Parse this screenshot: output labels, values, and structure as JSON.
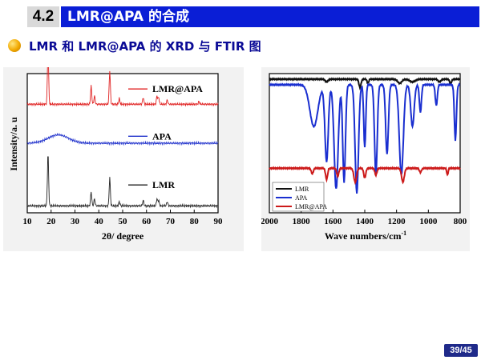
{
  "header": {
    "section_number": "4.2",
    "title": "LMR@APA 的合成"
  },
  "subtitle": "LMR 和 LMR@APA 的 XRD 与  FTIR 图",
  "page_indicator": "39/45",
  "chart_data": [
    {
      "type": "line",
      "panel": "xrd",
      "xlabel": "2θ/ degree",
      "ylabel": "Intensity/a. u",
      "xlim": [
        10,
        90
      ],
      "xticks": [
        "10",
        "20",
        "30",
        "40",
        "50",
        "60",
        "70",
        "80",
        "90"
      ],
      "legend_placement": "right, beside each curve",
      "series": [
        {
          "name": "LMR@APA",
          "color": "#e02020",
          "baseline_level": 0.78,
          "peaks": [
            [
              18.7,
              0.4
            ],
            [
              36.8,
              0.13
            ],
            [
              38.2,
              0.06
            ],
            [
              44.6,
              0.24
            ],
            [
              48.6,
              0.04
            ],
            [
              58.6,
              0.05
            ],
            [
              64.4,
              0.06
            ],
            [
              65.1,
              0.05
            ],
            [
              68.7,
              0.03
            ],
            [
              82.0,
              0.02
            ]
          ]
        },
        {
          "name": "APA",
          "color": "#2233cc",
          "baseline_level": 0.5,
          "broad_hump": {
            "center": 23,
            "height": 0.06,
            "width": 6
          }
        },
        {
          "name": "LMR",
          "color": "#222222",
          "baseline_level": 0.05,
          "peaks": [
            [
              18.7,
              0.38
            ],
            [
              36.8,
              0.1
            ],
            [
              38.2,
              0.05
            ],
            [
              44.6,
              0.2
            ],
            [
              48.6,
              0.03
            ],
            [
              58.6,
              0.04
            ],
            [
              64.4,
              0.05
            ],
            [
              65.1,
              0.04
            ],
            [
              68.7,
              0.03
            ]
          ]
        }
      ]
    },
    {
      "type": "line",
      "panel": "ftir",
      "xlabel": "Wave numbers/cm",
      "xlabel_sup": "-1",
      "xlim": [
        2000,
        800
      ],
      "xticks": [
        "2000",
        "1800",
        "1600",
        "1400",
        "1200",
        "1000",
        "800"
      ],
      "legend_placement": "bottom-left",
      "series": [
        {
          "name": "LMR",
          "color": "#111111",
          "baseline_level": 0.96,
          "bands": [
            [
              1640,
              0.02,
              20
            ],
            [
              1430,
              0.06,
              15
            ],
            [
              1380,
              0.03,
              12
            ],
            [
              1180,
              0.03,
              30
            ],
            [
              1100,
              0.02,
              40
            ],
            [
              930,
              0.02,
              20
            ],
            [
              860,
              0.03,
              15
            ]
          ]
        },
        {
          "name": "APA",
          "color": "#1a2fd0",
          "baseline_level": 0.92,
          "bands": [
            [
              1720,
              0.3,
              60
            ],
            [
              1640,
              0.55,
              25
            ],
            [
              1580,
              0.75,
              30
            ],
            [
              1530,
              0.7,
              20
            ],
            [
              1450,
              0.78,
              25
            ],
            [
              1400,
              0.45,
              15
            ],
            [
              1330,
              0.65,
              20
            ],
            [
              1260,
              0.5,
              20
            ],
            [
              1170,
              0.65,
              30
            ],
            [
              1100,
              0.3,
              25
            ],
            [
              1050,
              0.2,
              15
            ],
            [
              950,
              0.15,
              15
            ],
            [
              830,
              0.4,
              15
            ]
          ]
        },
        {
          "name": "LMR@APA",
          "color": "#cc1a1a",
          "baseline_level": 0.32,
          "bands": [
            [
              1730,
              0.04,
              15
            ],
            [
              1640,
              0.08,
              15
            ],
            [
              1570,
              0.06,
              15
            ],
            [
              1460,
              0.1,
              20
            ],
            [
              1400,
              0.07,
              15
            ],
            [
              1330,
              0.05,
              15
            ],
            [
              1160,
              0.1,
              20
            ],
            [
              1050,
              0.03,
              15
            ],
            [
              880,
              0.05,
              10
            ]
          ]
        }
      ]
    }
  ]
}
